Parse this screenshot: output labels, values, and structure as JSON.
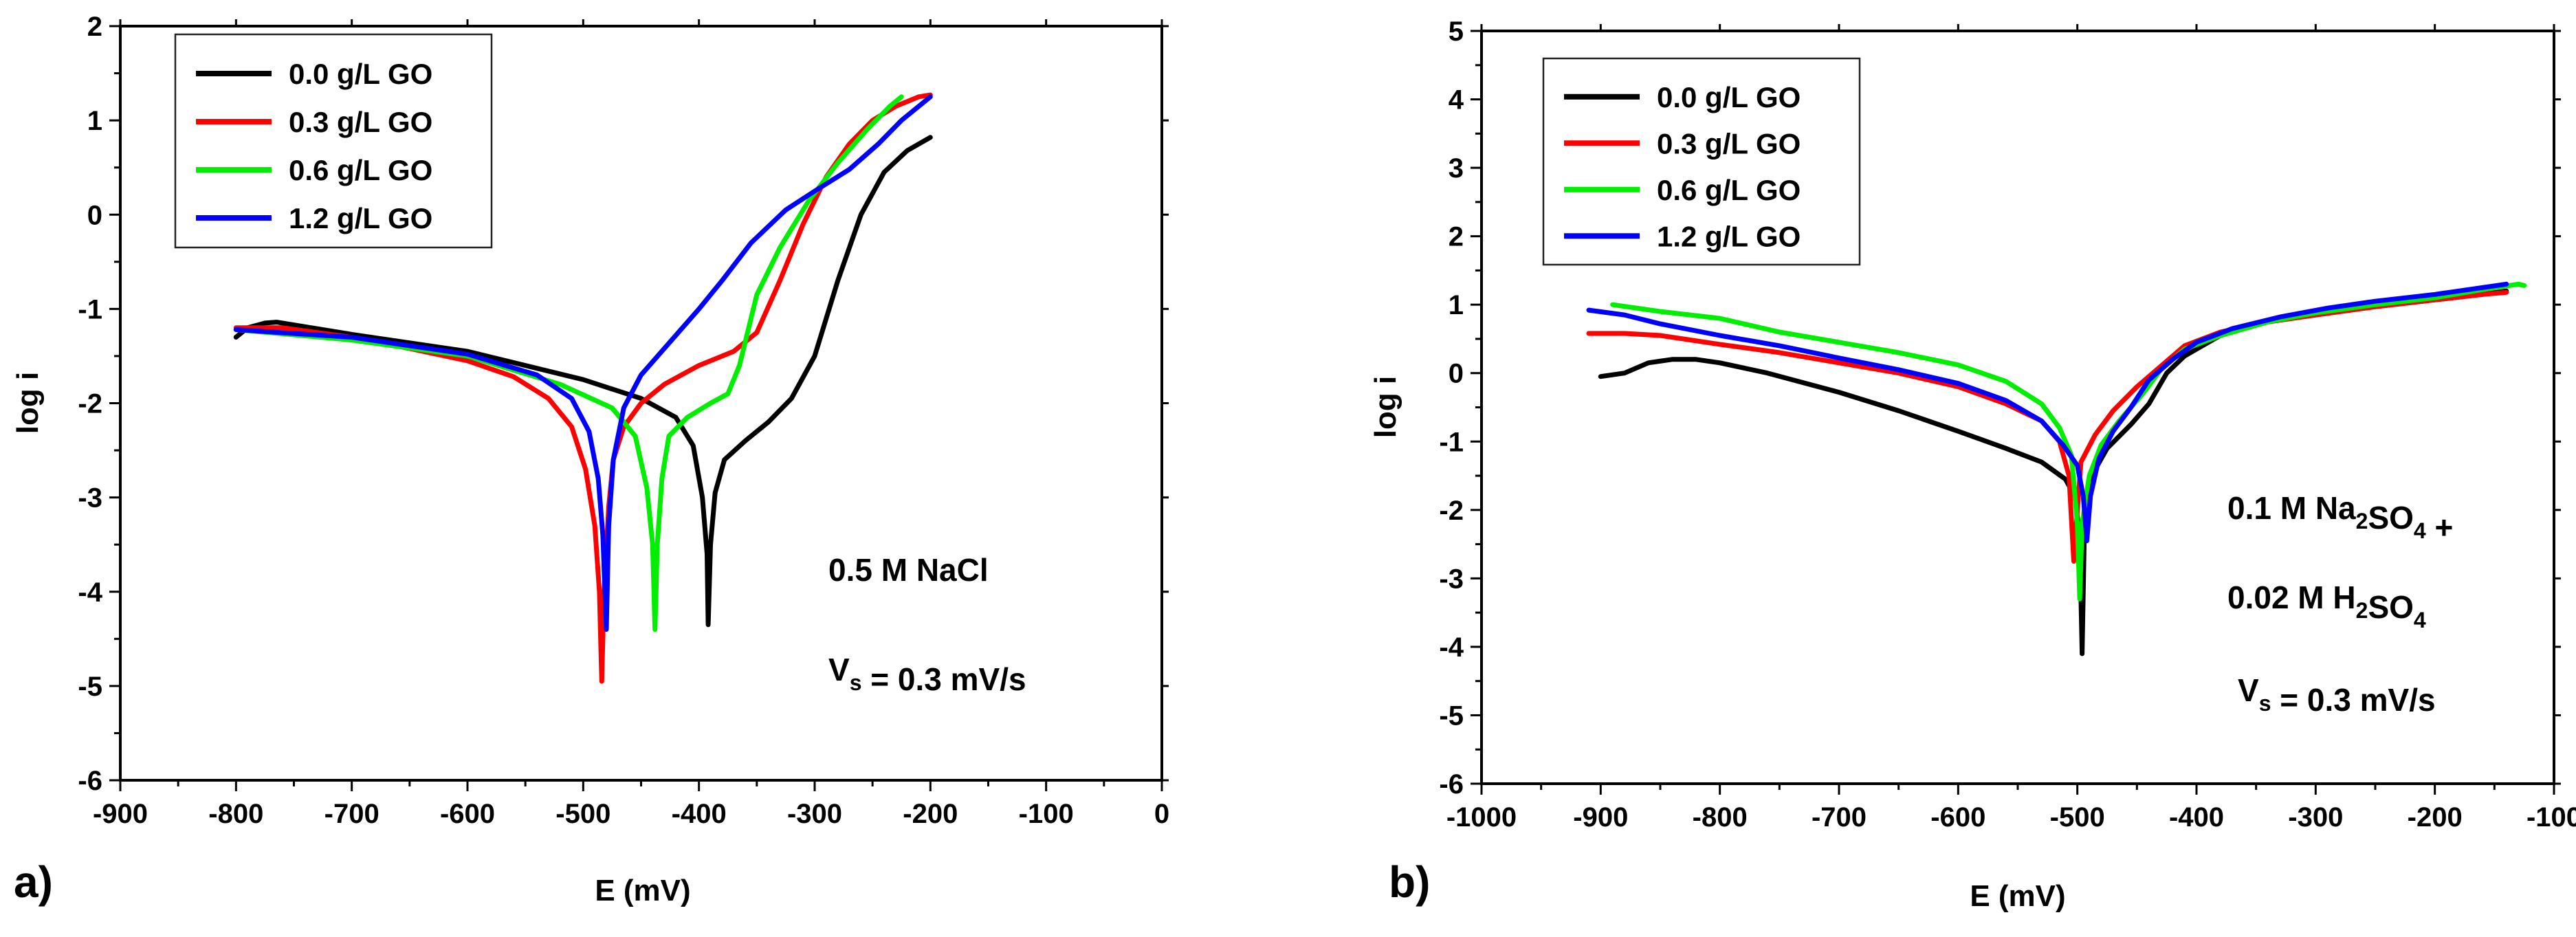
{
  "chart_data": [
    {
      "type": "line",
      "panel_label": "a)",
      "xlabel": "E (mV)",
      "ylabel": "log i",
      "xlim": [
        -900,
        0
      ],
      "ylim": [
        -6,
        2
      ],
      "xticks": [
        -900,
        -800,
        -700,
        -600,
        -500,
        -400,
        -300,
        -200,
        -100,
        0
      ],
      "yticks": [
        -6,
        -5,
        -4,
        -3,
        -2,
        -1,
        0,
        1,
        2
      ],
      "legend_position": "top-left",
      "annotations": [
        {
          "parts": [
            {
              "t": "0.5 M NaCl"
            }
          ]
        },
        {
          "parts": [
            {
              "t": "V"
            },
            {
              "t": "s",
              "sub": true
            },
            {
              "t": " = 0.3 mV/s"
            }
          ]
        }
      ],
      "series": [
        {
          "name": "0.0 g/L GO",
          "color": "#000000",
          "points": [
            [
              -800,
              -1.3
            ],
            [
              -790,
              -1.2
            ],
            [
              -775,
              -1.15
            ],
            [
              -765,
              -1.14
            ],
            [
              -700,
              -1.27
            ],
            [
              -600,
              -1.45
            ],
            [
              -500,
              -1.75
            ],
            [
              -450,
              -1.95
            ],
            [
              -420,
              -2.15
            ],
            [
              -405,
              -2.45
            ],
            [
              -397,
              -3.0
            ],
            [
              -393,
              -3.6
            ],
            [
              -392,
              -4.35
            ],
            [
              -390,
              -3.5
            ],
            [
              -386,
              -2.95
            ],
            [
              -378,
              -2.6
            ],
            [
              -360,
              -2.4
            ],
            [
              -340,
              -2.2
            ],
            [
              -320,
              -1.95
            ],
            [
              -300,
              -1.5
            ],
            [
              -280,
              -0.7
            ],
            [
              -260,
              0.0
            ],
            [
              -240,
              0.45
            ],
            [
              -220,
              0.68
            ],
            [
              -200,
              0.82
            ]
          ]
        },
        {
          "name": "0.3 g/L GO",
          "color": "#ff0000",
          "points": [
            [
              -800,
              -1.2
            ],
            [
              -760,
              -1.2
            ],
            [
              -700,
              -1.3
            ],
            [
              -650,
              -1.42
            ],
            [
              -600,
              -1.55
            ],
            [
              -560,
              -1.72
            ],
            [
              -530,
              -1.95
            ],
            [
              -510,
              -2.25
            ],
            [
              -498,
              -2.7
            ],
            [
              -490,
              -3.3
            ],
            [
              -486,
              -4.0
            ],
            [
              -484,
              -4.95
            ],
            [
              -482,
              -4.0
            ],
            [
              -478,
              -3.1
            ],
            [
              -474,
              -2.6
            ],
            [
              -465,
              -2.25
            ],
            [
              -450,
              -2.0
            ],
            [
              -430,
              -1.8
            ],
            [
              -400,
              -1.6
            ],
            [
              -370,
              -1.45
            ],
            [
              -350,
              -1.25
            ],
            [
              -330,
              -0.7
            ],
            [
              -310,
              -0.1
            ],
            [
              -290,
              0.4
            ],
            [
              -270,
              0.75
            ],
            [
              -250,
              1.0
            ],
            [
              -230,
              1.15
            ],
            [
              -210,
              1.25
            ],
            [
              -200,
              1.27
            ]
          ]
        },
        {
          "name": "0.6 g/L GO",
          "color": "#00ee00",
          "points": [
            [
              -800,
              -1.22
            ],
            [
              -700,
              -1.33
            ],
            [
              -600,
              -1.5
            ],
            [
              -520,
              -1.8
            ],
            [
              -475,
              -2.05
            ],
            [
              -455,
              -2.35
            ],
            [
              -445,
              -2.9
            ],
            [
              -440,
              -3.5
            ],
            [
              -438,
              -4.4
            ],
            [
              -436,
              -3.5
            ],
            [
              -432,
              -2.8
            ],
            [
              -426,
              -2.35
            ],
            [
              -410,
              -2.15
            ],
            [
              -390,
              -2.0
            ],
            [
              -375,
              -1.9
            ],
            [
              -365,
              -1.6
            ],
            [
              -350,
              -0.85
            ],
            [
              -330,
              -0.35
            ],
            [
              -305,
              0.15
            ],
            [
              -280,
              0.55
            ],
            [
              -255,
              0.9
            ],
            [
              -235,
              1.15
            ],
            [
              -225,
              1.25
            ]
          ]
        },
        {
          "name": "1.2 g/L GO",
          "color": "#0000ff",
          "points": [
            [
              -800,
              -1.22
            ],
            [
              -700,
              -1.3
            ],
            [
              -600,
              -1.48
            ],
            [
              -540,
              -1.7
            ],
            [
              -510,
              -1.95
            ],
            [
              -495,
              -2.3
            ],
            [
              -487,
              -2.8
            ],
            [
              -483,
              -3.4
            ],
            [
              -480,
              -4.4
            ],
            [
              -478,
              -3.3
            ],
            [
              -474,
              -2.6
            ],
            [
              -465,
              -2.05
            ],
            [
              -450,
              -1.7
            ],
            [
              -425,
              -1.35
            ],
            [
              -400,
              -1.0
            ],
            [
              -380,
              -0.7
            ],
            [
              -355,
              -0.3
            ],
            [
              -325,
              0.05
            ],
            [
              -300,
              0.25
            ],
            [
              -270,
              0.48
            ],
            [
              -245,
              0.75
            ],
            [
              -225,
              1.0
            ],
            [
              -205,
              1.2
            ],
            [
              -200,
              1.25
            ]
          ]
        }
      ]
    },
    {
      "type": "line",
      "panel_label": "b)",
      "xlabel": "E (mV)",
      "ylabel": "log i",
      "xlim": [
        -1000,
        -100
      ],
      "ylim": [
        -6,
        5
      ],
      "xticks": [
        -1000,
        -900,
        -800,
        -700,
        -600,
        -500,
        -400,
        -300,
        -200,
        -100
      ],
      "yticks": [
        -6,
        -5,
        -4,
        -3,
        -2,
        -1,
        0,
        1,
        2,
        3,
        4,
        5
      ],
      "legend_position": "top-left",
      "annotations": [
        {
          "parts": [
            {
              "t": "0.1 M Na"
            },
            {
              "t": "2",
              "sub": true
            },
            {
              "t": "SO"
            },
            {
              "t": "4",
              "sub": true
            },
            {
              "t": " +"
            }
          ]
        },
        {
          "parts": [
            {
              "t": "0.02 M H"
            },
            {
              "t": "2",
              "sub": true
            },
            {
              "t": "SO"
            },
            {
              "t": "4",
              "sub": true
            }
          ]
        },
        {
          "parts": [
            {
              "t": "V"
            },
            {
              "t": "s",
              "sub": true
            },
            {
              "t": " = 0.3 mV/s"
            }
          ]
        }
      ],
      "series": [
        {
          "name": "0.0 g/L GO",
          "color": "#000000",
          "points": [
            [
              -900,
              -0.05
            ],
            [
              -880,
              0.0
            ],
            [
              -860,
              0.15
            ],
            [
              -840,
              0.2
            ],
            [
              -820,
              0.2
            ],
            [
              -800,
              0.15
            ],
            [
              -760,
              0.0
            ],
            [
              -700,
              -0.28
            ],
            [
              -650,
              -0.55
            ],
            [
              -600,
              -0.85
            ],
            [
              -560,
              -1.1
            ],
            [
              -530,
              -1.3
            ],
            [
              -510,
              -1.55
            ],
            [
              -502,
              -1.8
            ],
            [
              -498,
              -2.4
            ],
            [
              -496,
              -4.1
            ],
            [
              -494,
              -2.2
            ],
            [
              -488,
              -1.5
            ],
            [
              -475,
              -1.1
            ],
            [
              -455,
              -0.75
            ],
            [
              -440,
              -0.45
            ],
            [
              -425,
              0.0
            ],
            [
              -410,
              0.25
            ],
            [
              -380,
              0.55
            ],
            [
              -340,
              0.75
            ],
            [
              -300,
              0.85
            ],
            [
              -250,
              0.97
            ],
            [
              -200,
              1.07
            ],
            [
              -160,
              1.15
            ],
            [
              -140,
              1.2
            ]
          ]
        },
        {
          "name": "0.3 g/L GO",
          "color": "#ff0000",
          "points": [
            [
              -910,
              0.58
            ],
            [
              -880,
              0.58
            ],
            [
              -850,
              0.55
            ],
            [
              -800,
              0.42
            ],
            [
              -750,
              0.3
            ],
            [
              -700,
              0.15
            ],
            [
              -650,
              0.0
            ],
            [
              -600,
              -0.2
            ],
            [
              -560,
              -0.45
            ],
            [
              -530,
              -0.7
            ],
            [
              -515,
              -1.0
            ],
            [
              -507,
              -1.5
            ],
            [
              -503,
              -2.75
            ],
            [
              -500,
              -2.0
            ],
            [
              -497,
              -1.3
            ],
            [
              -485,
              -0.9
            ],
            [
              -470,
              -0.55
            ],
            [
              -450,
              -0.2
            ],
            [
              -430,
              0.1
            ],
            [
              -410,
              0.4
            ],
            [
              -380,
              0.6
            ],
            [
              -340,
              0.75
            ],
            [
              -300,
              0.85
            ],
            [
              -250,
              0.97
            ],
            [
              -200,
              1.07
            ],
            [
              -160,
              1.15
            ],
            [
              -140,
              1.18
            ]
          ]
        },
        {
          "name": "0.6 g/L GO",
          "color": "#00ee00",
          "points": [
            [
              -890,
              1.0
            ],
            [
              -850,
              0.9
            ],
            [
              -800,
              0.8
            ],
            [
              -750,
              0.6
            ],
            [
              -700,
              0.45
            ],
            [
              -650,
              0.3
            ],
            [
              -600,
              0.12
            ],
            [
              -560,
              -0.12
            ],
            [
              -530,
              -0.45
            ],
            [
              -515,
              -0.8
            ],
            [
              -505,
              -1.2
            ],
            [
              -500,
              -2.2
            ],
            [
              -498,
              -3.3
            ],
            [
              -496,
              -2.2
            ],
            [
              -490,
              -1.5
            ],
            [
              -480,
              -1.05
            ],
            [
              -465,
              -0.7
            ],
            [
              -445,
              -0.3
            ],
            [
              -430,
              0.05
            ],
            [
              -410,
              0.35
            ],
            [
              -380,
              0.55
            ],
            [
              -340,
              0.75
            ],
            [
              -300,
              0.88
            ],
            [
              -250,
              1.0
            ],
            [
              -200,
              1.1
            ],
            [
              -160,
              1.22
            ],
            [
              -130,
              1.3
            ],
            [
              -125,
              1.28
            ]
          ]
        },
        {
          "name": "1.2 g/L GO",
          "color": "#0000ff",
          "points": [
            [
              -910,
              0.92
            ],
            [
              -880,
              0.85
            ],
            [
              -850,
              0.72
            ],
            [
              -800,
              0.55
            ],
            [
              -750,
              0.4
            ],
            [
              -700,
              0.22
            ],
            [
              -650,
              0.05
            ],
            [
              -600,
              -0.15
            ],
            [
              -560,
              -0.4
            ],
            [
              -530,
              -0.7
            ],
            [
              -512,
              -1.05
            ],
            [
              -500,
              -1.35
            ],
            [
              -495,
              -1.8
            ],
            [
              -492,
              -2.45
            ],
            [
              -489,
              -1.8
            ],
            [
              -482,
              -1.25
            ],
            [
              -470,
              -0.85
            ],
            [
              -455,
              -0.5
            ],
            [
              -440,
              -0.1
            ],
            [
              -420,
              0.2
            ],
            [
              -400,
              0.45
            ],
            [
              -370,
              0.65
            ],
            [
              -330,
              0.82
            ],
            [
              -290,
              0.95
            ],
            [
              -250,
              1.05
            ],
            [
              -200,
              1.15
            ],
            [
              -160,
              1.25
            ],
            [
              -140,
              1.3
            ]
          ]
        }
      ]
    }
  ]
}
